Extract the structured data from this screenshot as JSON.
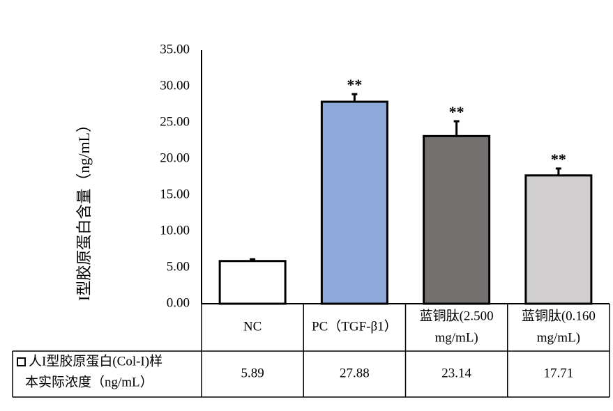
{
  "chart_data": {
    "type": "bar",
    "ylabel": "I型胶原蛋白含量（ng/mL）",
    "ylim": [
      0,
      35
    ],
    "yticks": [
      "0.00",
      "5.00",
      "10.00",
      "15.00",
      "20.00",
      "25.00",
      "30.00",
      "35.00"
    ],
    "grid": false,
    "categories": [
      [
        "NC"
      ],
      [
        "PC（TGF-β1）"
      ],
      [
        "蓝铜肽(2.500",
        "mg/mL)"
      ],
      [
        "蓝铜肽(0.160",
        "mg/mL)"
      ]
    ],
    "series": [
      {
        "name": "人I型胶原蛋白(Col-I)样本实际浓度（ng/mL）",
        "values": [
          5.89,
          27.88,
          23.14,
          17.71
        ],
        "errors": [
          0.25,
          1.05,
          2.05,
          0.95
        ],
        "significance": [
          "",
          "**",
          "**",
          "**"
        ],
        "colors": [
          "#ffffff",
          "#8eaadb",
          "#767171",
          "#d0cece"
        ]
      }
    ],
    "data_table": {
      "legend_lines": [
        "人I型胶原蛋白(Col-I)样",
        "本实际浓度（ng/mL）"
      ],
      "cells": [
        "5.89",
        "27.88",
        "23.14",
        "17.71"
      ]
    }
  }
}
